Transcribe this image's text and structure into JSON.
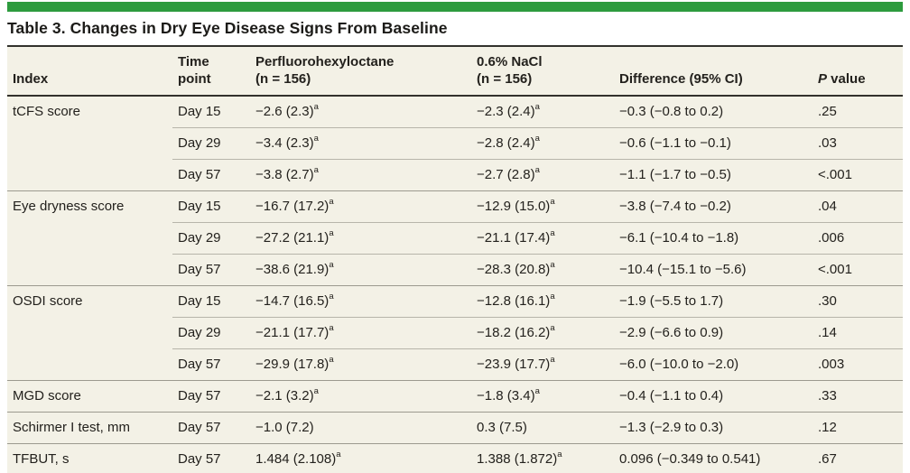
{
  "colors": {
    "accent_green": "#2d9b3e",
    "table_background": "#f3f1e6",
    "dark_rule": "#32312c"
  },
  "title": "Table 3. Changes in Dry Eye Disease Signs From Baseline",
  "table": {
    "header": {
      "index": "Index",
      "time_point": "Time\npoint",
      "pfho": "Perfluorohexyloctane\n(n = 156)",
      "nacl": "0.6% NaCl\n(n = 156)",
      "difference": "Difference (95% CI)",
      "p_italic": "P",
      "p_rest": " value"
    },
    "footnote_marker": "a",
    "groups": [
      {
        "index": "tCFS score",
        "rows": [
          {
            "time": "Day 15",
            "pfho": "−2.6 (2.3)ᵃ",
            "nacl": "−2.3 (2.4)ᵃ",
            "diff": "−0.3 (−0.8 to 0.2)",
            "p": ".25"
          },
          {
            "time": "Day 29",
            "pfho": "−3.4 (2.3)ᵃ",
            "nacl": "−2.8 (2.4)ᵃ",
            "diff": "−0.6 (−1.1 to −0.1)",
            "p": ".03"
          },
          {
            "time": "Day 57",
            "pfho": "−3.8 (2.7)ᵃ",
            "nacl": "−2.7 (2.8)ᵃ",
            "diff": "−1.1 (−1.7 to −0.5)",
            "p": "<.001"
          }
        ]
      },
      {
        "index": "Eye dryness score",
        "rows": [
          {
            "time": "Day 15",
            "pfho": "−16.7 (17.2)ᵃ",
            "nacl": "−12.9 (15.0)ᵃ",
            "diff": "−3.8 (−7.4 to −0.2)",
            "p": ".04"
          },
          {
            "time": "Day 29",
            "pfho": "−27.2 (21.1)ᵃ",
            "nacl": "−21.1 (17.4)ᵃ",
            "diff": "−6.1 (−10.4 to −1.8)",
            "p": ".006"
          },
          {
            "time": "Day 57",
            "pfho": "−38.6 (21.9)ᵃ",
            "nacl": "−28.3 (20.8)ᵃ",
            "diff": "−10.4 (−15.1 to −5.6)",
            "p": "<.001"
          }
        ]
      },
      {
        "index": "OSDI score",
        "rows": [
          {
            "time": "Day 15",
            "pfho": "−14.7 (16.5)ᵃ",
            "nacl": "−12.8 (16.1)ᵃ",
            "diff": "−1.9 (−5.5 to 1.7)",
            "p": ".30"
          },
          {
            "time": "Day 29",
            "pfho": "−21.1 (17.7)ᵃ",
            "nacl": "−18.2 (16.2)ᵃ",
            "diff": "−2.9 (−6.6 to 0.9)",
            "p": ".14"
          },
          {
            "time": "Day 57",
            "pfho": "−29.9 (17.8)ᵃ",
            "nacl": "−23.9 (17.7)ᵃ",
            "diff": "−6.0 (−10.0 to −2.0)",
            "p": ".003"
          }
        ]
      },
      {
        "index": "MGD score",
        "rows": [
          {
            "time": "Day 57",
            "pfho": "−2.1 (3.2)ᵃ",
            "nacl": "−1.8 (3.4)ᵃ",
            "diff": "−0.4 (−1.1 to 0.4)",
            "p": ".33"
          }
        ]
      },
      {
        "index": "Schirmer I test, mm",
        "rows": [
          {
            "time": "Day 57",
            "pfho": "−1.0 (7.2)",
            "nacl": "0.3 (7.5)",
            "diff": "−1.3 (−2.9 to 0.3)",
            "p": ".12"
          }
        ]
      },
      {
        "index": "TFBUT, s",
        "rows": [
          {
            "time": "Day 57",
            "pfho": "1.484 (2.108)ᵃ",
            "nacl": "1.388 (1.872)ᵃ",
            "diff": "0.096 (−0.349 to 0.541)",
            "p": ".67"
          }
        ]
      }
    ]
  }
}
